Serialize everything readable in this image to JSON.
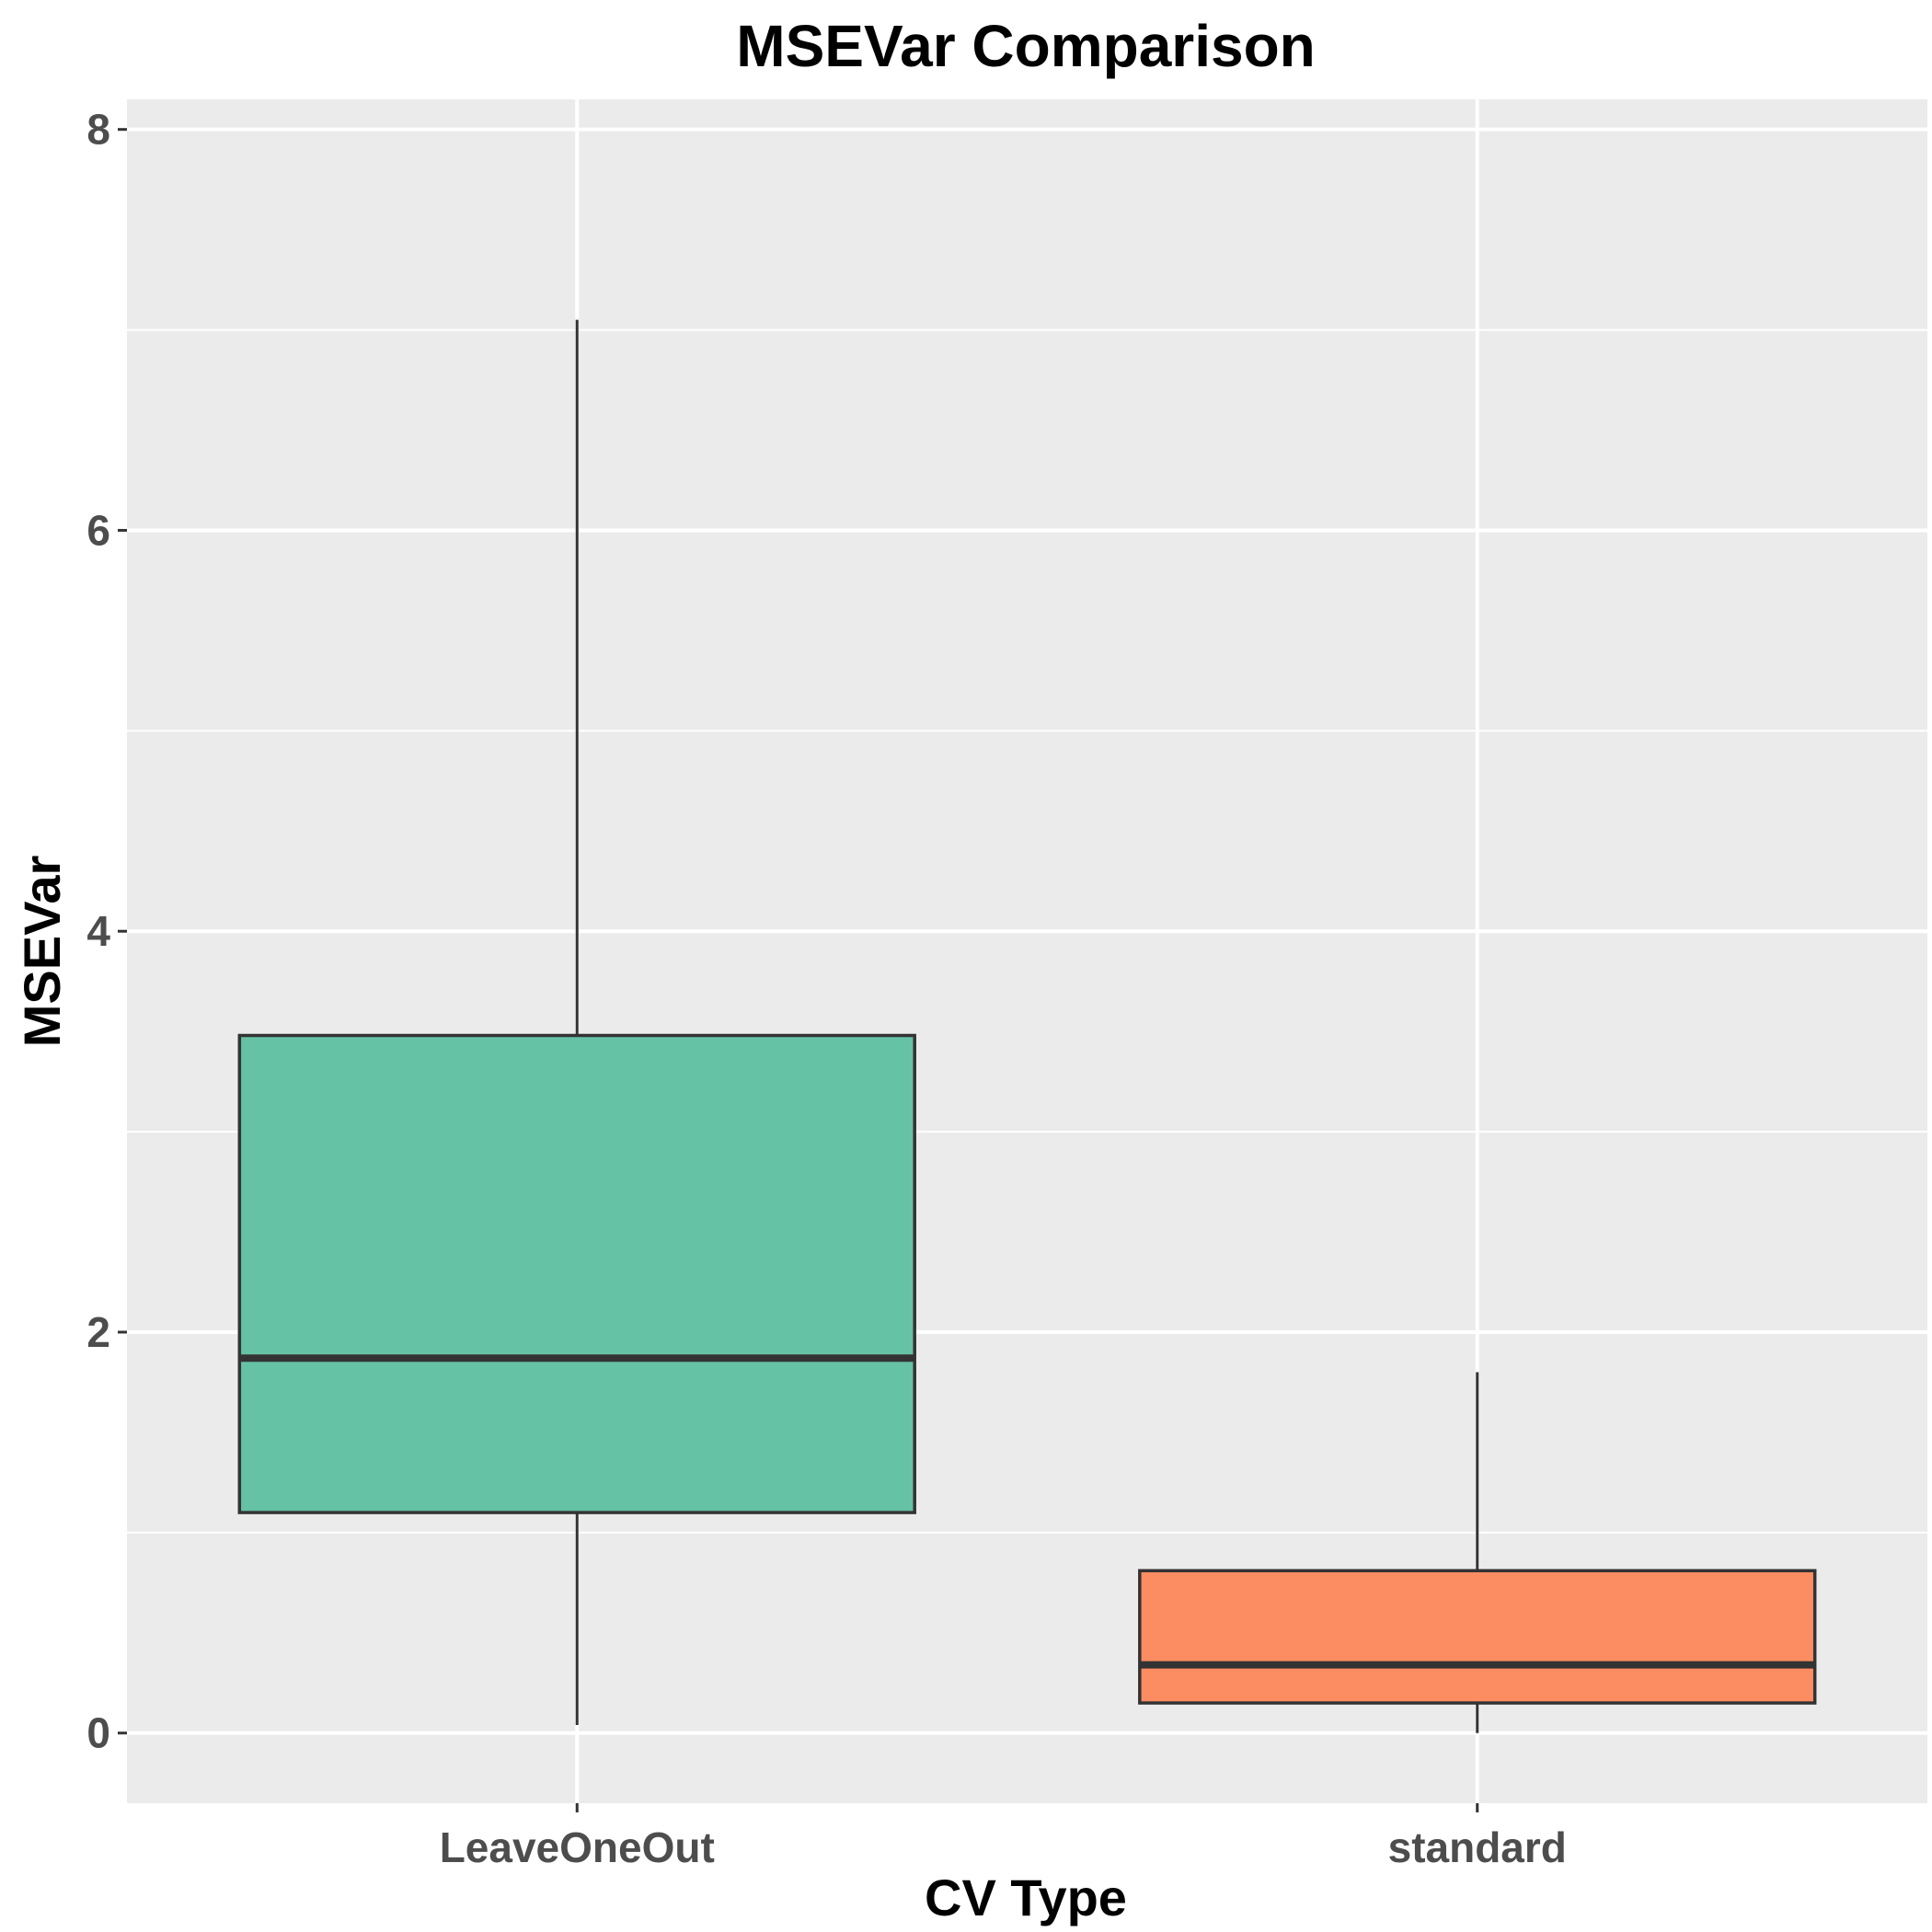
{
  "chart_data": {
    "type": "boxplot",
    "title": "MSEVar Comparison",
    "xlabel": "CV Type",
    "ylabel": "MSEVar",
    "ylim": [
      -0.35,
      8.15
    ],
    "yticks": [
      "0",
      "2",
      "4",
      "6",
      "8"
    ],
    "ytick_values": [
      0,
      2,
      4,
      6,
      8
    ],
    "categories": [
      "LeaveOneOut",
      "standard"
    ],
    "boxes": [
      {
        "category": "LeaveOneOut",
        "whisker_low": 0.04,
        "q1": 1.1,
        "median": 1.87,
        "q3": 3.48,
        "whisker_high": 7.05,
        "color": "#66c2a5"
      },
      {
        "category": "standard",
        "whisker_low": 0.0,
        "q1": 0.15,
        "median": 0.34,
        "q3": 0.81,
        "whisker_high": 1.8,
        "color": "#fc8d62"
      }
    ],
    "grid": true,
    "panel_color": "#ebebeb",
    "outline_color": "#333333"
  }
}
